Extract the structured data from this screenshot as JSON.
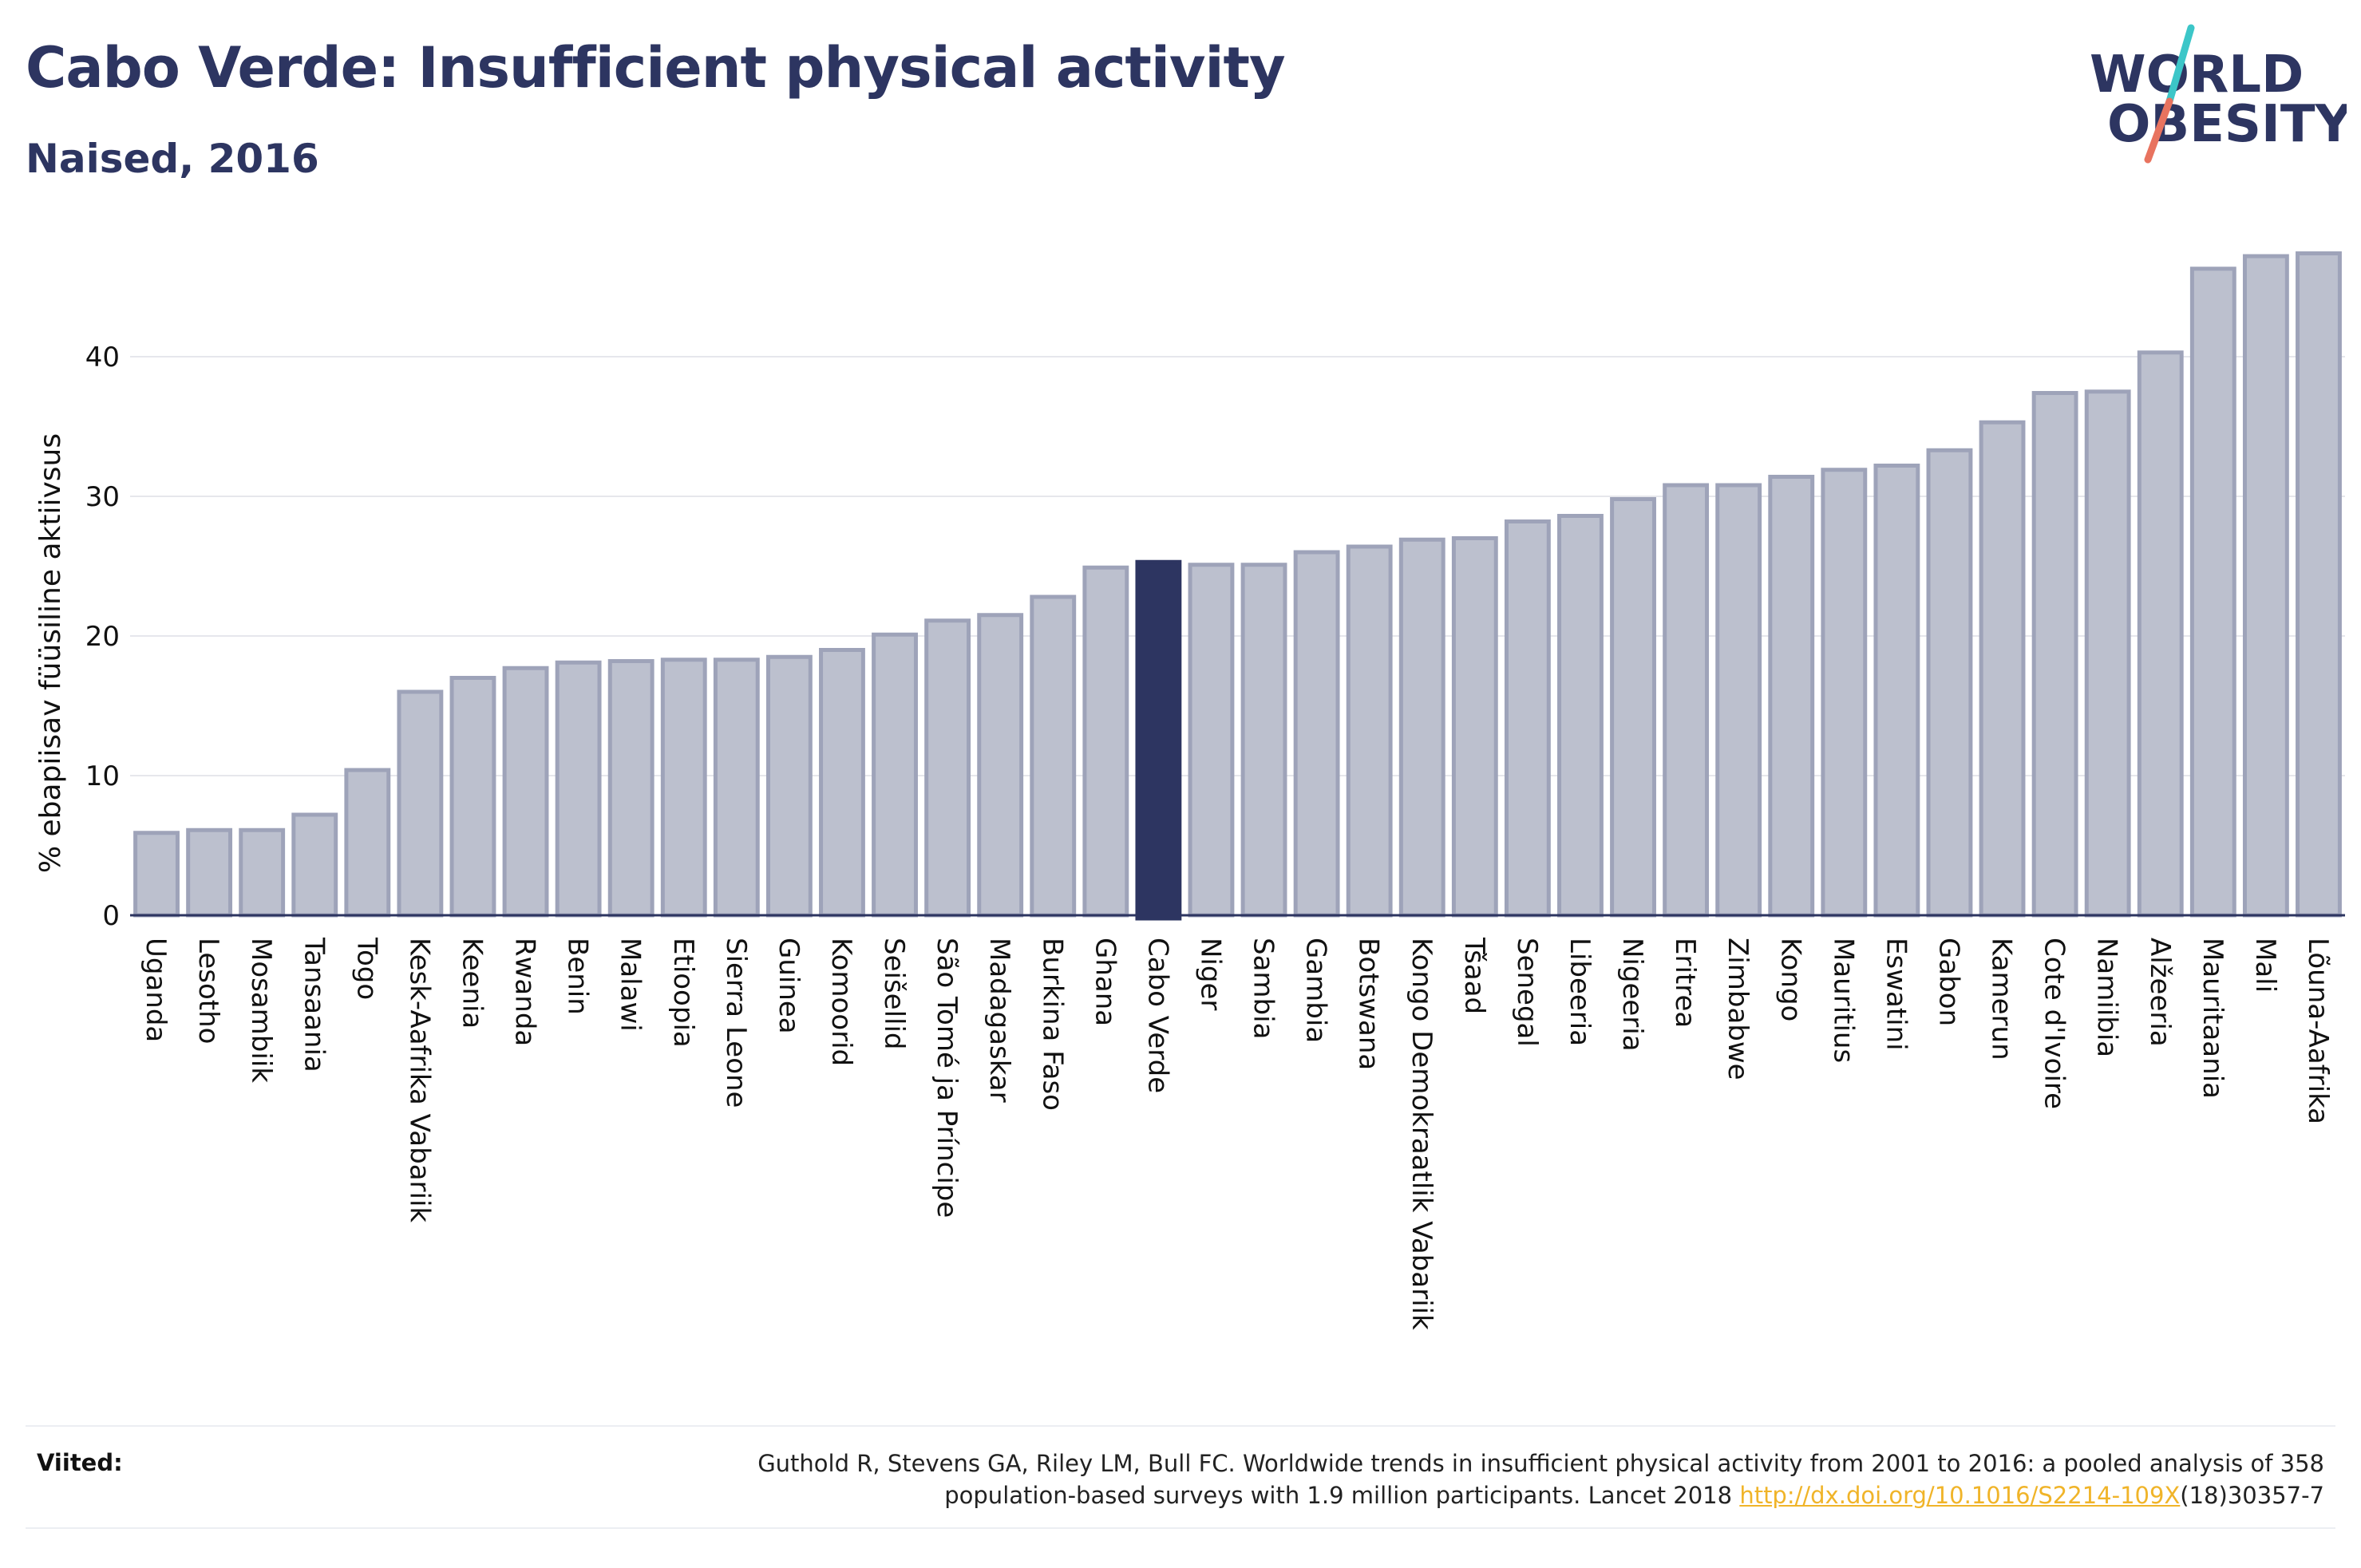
{
  "header": {
    "title": "Cabo Verde: Insufficient physical activity",
    "subtitle": "Naised, 2016"
  },
  "logo": {
    "line1": "WORLD",
    "line2": "OBESITY",
    "colors": {
      "text": "#2d3561",
      "slash_teal": "#3cc6c8",
      "slash_coral": "#e8735f"
    }
  },
  "colors": {
    "bar_fill": "#bcc0ce",
    "bar_stroke": "#9ea3b9",
    "highlight_fill": "#2d3561",
    "axis_text": "#111111",
    "grid": "#e6e7ec"
  },
  "chart_data": {
    "type": "bar",
    "ylabel": "% ebapiisav füüsiline aktiivsus",
    "ylim": [
      0,
      50
    ],
    "yticks": [
      0,
      10,
      20,
      30,
      40
    ],
    "grid": true,
    "highlight": "Cabo Verde",
    "categories": [
      "Uganda",
      "Lesotho",
      "Mosambiik",
      "Tansaania",
      "Togo",
      "Kesk-Aafrika Vabariik",
      "Keenia",
      "Rwanda",
      "Benin",
      "Malawi",
      "Etioopia",
      "Sierra Leone",
      "Guinea",
      "Komoorid",
      "Seišellid",
      "São Tomé ja Príncipe",
      "Madagaskar",
      "Burkina Faso",
      "Ghana",
      "Cabo Verde",
      "Niger",
      "Sambia",
      "Gambia",
      "Botswana",
      "Kongo Demokraatlik Vabariik",
      "Tšaad",
      "Senegal",
      "Libeeria",
      "Nigeeria",
      "Eritrea",
      "Zimbabwe",
      "Kongo",
      "Mauritius",
      "Eswatini",
      "Gabon",
      "Kamerun",
      "Cote d'Ivoire",
      "Namiibia",
      "Alžeeria",
      "Mauritaania",
      "Mali",
      "Lõuna-Aafrika"
    ],
    "values": [
      5.9,
      6.1,
      6.1,
      7.2,
      10.4,
      16.0,
      17.0,
      17.7,
      18.1,
      18.2,
      18.3,
      18.3,
      18.5,
      19.0,
      20.1,
      21.1,
      21.5,
      22.8,
      24.9,
      25.3,
      25.1,
      25.1,
      26.0,
      26.4,
      26.9,
      27.0,
      28.2,
      28.6,
      29.8,
      30.8,
      30.8,
      31.4,
      31.9,
      32.2,
      33.3,
      35.3,
      37.4,
      37.5,
      40.3,
      46.3,
      47.2,
      47.4
    ]
  },
  "sources": {
    "label": "Viited:",
    "line1": "Guthold R, Stevens GA, Riley LM, Bull FC. Worldwide trends in insufficient physical activity from 2001 to 2016: a pooled analysis of 358",
    "line2_prefix": "population-based surveys with 1.9 million participants. Lancet 2018 ",
    "link_text": "http://dx.doi.org/10.1016/S2214-109X",
    "line2_suffix": "(18)30357-7"
  }
}
